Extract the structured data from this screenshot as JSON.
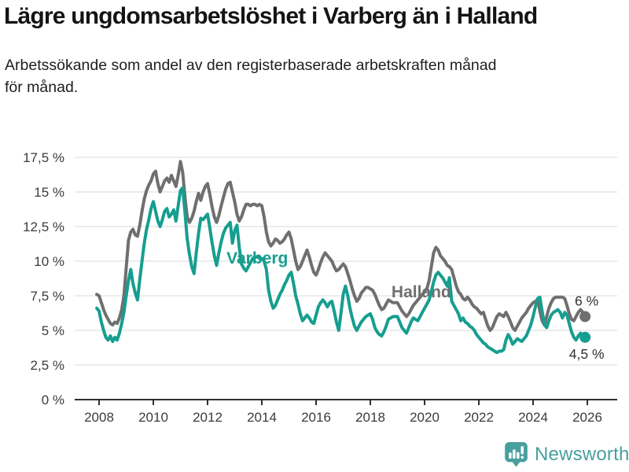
{
  "header": {
    "title": "Lägre ungdomsarbetslöshet i Varberg än i Halland",
    "subtitle": "Arbetssökande som andel av den registerbaserade arbetskraften månad\nför månad."
  },
  "footer": {
    "brand": "Newsworthy"
  },
  "colors": {
    "varberg": "#169E90",
    "halland": "#6F6F6F",
    "axis": "#2F2F2F",
    "grid": "#D8D8D8",
    "tick_text": "#3B3B3B",
    "end_label_text": "#333333",
    "brand": "#47A09D"
  },
  "chart_data": {
    "type": "line",
    "title": "Lägre ungdomsarbetslöshet i Varberg än i Halland",
    "subtitle": "Arbetssökande som andel av den registerbaserade arbetskraften månad för månad.",
    "frequency": "monthly",
    "x_start": 2007.9167,
    "x_end": 2025.9167,
    "x_axis": {
      "ticks": [
        2008,
        2010,
        2012,
        2014,
        2016,
        2018,
        2020,
        2022,
        2024,
        2026
      ]
    },
    "y_axis": {
      "ticks": [
        0,
        2.5,
        5,
        7.5,
        10,
        12.5,
        15,
        17.5
      ],
      "tick_labels": [
        "0 %",
        "2,5 %",
        "5 %",
        "7,5 %",
        "10 %",
        "12,5 %",
        "15 %",
        "17,5 %"
      ],
      "ylim": [
        0,
        17.5
      ]
    },
    "grid": true,
    "legend": "inline-labels",
    "series": [
      {
        "name": "Halland",
        "color": "#6F6F6F",
        "end_label": "6 %",
        "end_label_dx": 2,
        "end_label_dy": -14,
        "label_at": [
          2018.78,
          7.4
        ],
        "values": [
          7.6,
          7.5,
          7.0,
          6.5,
          6.1,
          5.8,
          5.5,
          5.4,
          5.6,
          5.5,
          5.9,
          6.5,
          7.5,
          9.5,
          11.5,
          12.1,
          12.3,
          11.9,
          11.8,
          12.6,
          13.6,
          14.5,
          15.1,
          15.5,
          15.8,
          16.3,
          16.5,
          15.6,
          15.0,
          15.4,
          15.8,
          16.0,
          15.7,
          16.2,
          15.8,
          15.4,
          16.2,
          17.2,
          16.4,
          14.6,
          13.2,
          12.8,
          13.1,
          13.6,
          14.3,
          14.9,
          14.4,
          15.0,
          15.4,
          15.6,
          14.8,
          13.9,
          13.2,
          12.8,
          13.3,
          14.0,
          14.6,
          15.2,
          15.6,
          15.7,
          15.0,
          14.3,
          13.4,
          12.9,
          13.2,
          13.7,
          14.1,
          14.1,
          14.0,
          14.1,
          14.1,
          14.0,
          14.1,
          14.0,
          13.2,
          12.1,
          11.4,
          11.1,
          11.3,
          11.6,
          11.5,
          11.3,
          11.4,
          11.6,
          11.9,
          12.1,
          11.6,
          10.8,
          10.0,
          9.4,
          9.6,
          10.0,
          10.4,
          10.8,
          10.3,
          9.7,
          9.2,
          9.0,
          9.4,
          9.9,
          10.3,
          10.6,
          10.4,
          10.2,
          10.0,
          9.6,
          9.3,
          9.4,
          9.6,
          9.8,
          9.6,
          9.1,
          8.6,
          8.0,
          7.5,
          7.1,
          7.3,
          7.7,
          7.9,
          8.1,
          8.1,
          8.0,
          7.9,
          7.6,
          7.2,
          6.8,
          6.5,
          6.6,
          6.9,
          7.2,
          7.1,
          7.0,
          7.0,
          7.0,
          6.7,
          6.4,
          6.2,
          6.0,
          6.2,
          6.5,
          6.8,
          7.0,
          7.2,
          7.4,
          7.6,
          7.8,
          8.0,
          8.6,
          9.6,
          10.6,
          11.0,
          10.8,
          10.4,
          10.2,
          10.0,
          9.7,
          9.6,
          9.4,
          8.8,
          8.2,
          7.8,
          7.6,
          7.3,
          7.2,
          7.4,
          7.2,
          6.9,
          6.7,
          6.6,
          6.4,
          6.2,
          6.3,
          5.8,
          5.3,
          5.0,
          5.2,
          5.6,
          6.0,
          6.2,
          6.1,
          6.0,
          6.3,
          6.0,
          5.6,
          5.2,
          5.0,
          5.3,
          5.6,
          5.9,
          6.1,
          6.3,
          6.6,
          6.8,
          7.0,
          7.1,
          7.2,
          6.4,
          5.7,
          5.4,
          6.0,
          6.6,
          7.0,
          7.3,
          7.4,
          7.4,
          7.4,
          7.4,
          7.3,
          6.8,
          6.2,
          5.8,
          5.7,
          6.0,
          6.3,
          6.5,
          6.3,
          6.0
        ]
      },
      {
        "name": "Varberg",
        "color": "#169E90",
        "end_label": "4,5 %",
        "end_label_dx": 2,
        "end_label_dy": 27,
        "label_at": [
          2012.7,
          9.83
        ],
        "values": [
          6.6,
          6.4,
          5.6,
          5.0,
          4.5,
          4.3,
          4.6,
          4.2,
          4.5,
          4.3,
          4.8,
          5.5,
          6.3,
          7.5,
          8.6,
          9.4,
          8.4,
          7.7,
          7.2,
          8.7,
          10.0,
          11.3,
          12.3,
          13.0,
          13.8,
          14.3,
          13.6,
          12.9,
          12.5,
          13.0,
          13.6,
          13.8,
          13.2,
          13.4,
          13.7,
          12.9,
          14.0,
          15.1,
          15.3,
          13.5,
          11.6,
          10.5,
          9.6,
          9.1,
          10.6,
          12.0,
          13.1,
          13.0,
          13.2,
          13.4,
          12.4,
          11.3,
          10.4,
          9.7,
          10.6,
          11.4,
          12.0,
          12.4,
          12.6,
          12.8,
          11.3,
          12.2,
          12.6,
          11.0,
          9.8,
          9.5,
          9.3,
          9.6,
          9.9,
          10.2,
          10.3,
          10.3,
          10.2,
          10.2,
          10.0,
          9.4,
          7.9,
          7.1,
          6.6,
          6.8,
          7.2,
          7.6,
          7.9,
          8.3,
          8.6,
          9.0,
          9.2,
          8.4,
          7.5,
          6.9,
          6.2,
          5.7,
          5.9,
          6.1,
          5.9,
          5.6,
          5.5,
          6.1,
          6.7,
          7.0,
          7.2,
          7.0,
          6.7,
          7.0,
          7.1,
          6.4,
          5.6,
          5.0,
          6.2,
          7.6,
          8.2,
          7.5,
          6.6,
          5.9,
          5.3,
          5.0,
          5.3,
          5.6,
          5.8,
          6.0,
          6.1,
          6.2,
          5.8,
          5.2,
          4.9,
          4.7,
          4.6,
          4.9,
          5.3,
          5.8,
          5.9,
          6.0,
          6.0,
          6.0,
          5.6,
          5.2,
          5.0,
          4.8,
          5.2,
          5.6,
          5.9,
          5.8,
          5.7,
          6.0,
          6.3,
          6.6,
          6.9,
          7.2,
          7.8,
          8.5,
          9.0,
          9.2,
          9.0,
          8.8,
          8.5,
          8.2,
          8.8,
          7.1,
          6.8,
          6.5,
          6.2,
          5.7,
          5.9,
          5.6,
          5.5,
          5.3,
          5.2,
          5.0,
          4.7,
          4.5,
          4.3,
          4.1,
          4.0,
          3.8,
          3.7,
          3.6,
          3.5,
          3.4,
          3.5,
          3.5,
          3.6,
          4.3,
          4.7,
          4.4,
          4.0,
          4.2,
          4.4,
          4.3,
          4.2,
          4.4,
          4.6,
          5.0,
          5.4,
          6.0,
          6.7,
          7.3,
          7.4,
          6.4,
          5.4,
          5.2,
          5.7,
          6.1,
          6.3,
          6.4,
          6.5,
          6.3,
          5.9,
          6.3,
          6.1,
          5.5,
          4.9,
          4.5,
          4.3,
          4.6,
          4.8,
          4.4,
          4.5
        ]
      }
    ]
  }
}
